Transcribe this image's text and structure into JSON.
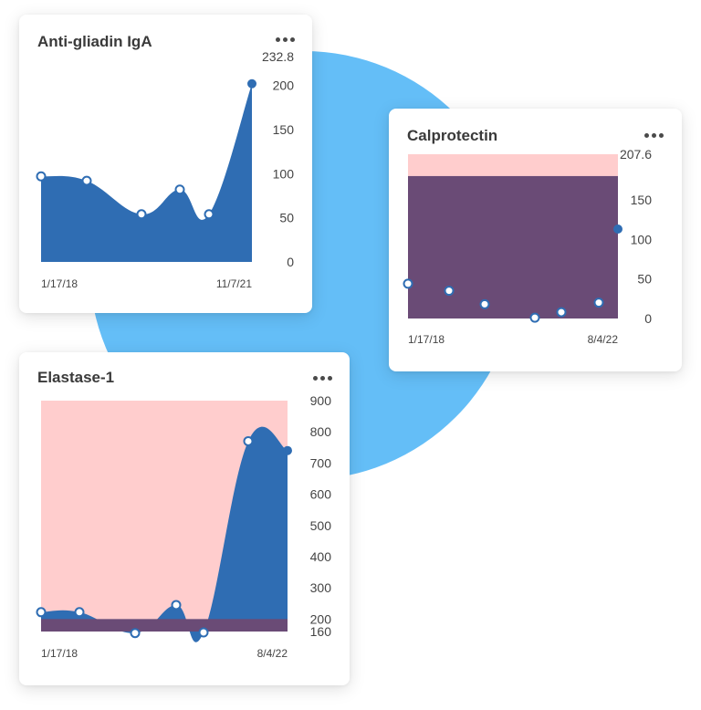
{
  "background": {
    "circle_color": "#64bef7"
  },
  "colors": {
    "series_fill": "#2f6db3",
    "point_fill": "#ffffff",
    "range_fill": "#ffcdcd",
    "overlap_fill": "#6a4b76",
    "text": "#3a3a3a",
    "tick": "#444444"
  },
  "menu_icon": "more-horizontal-icon",
  "cards": [
    {
      "key": "antigliadin",
      "title": "Anti-gliadin IgA",
      "chart_data": {
        "type": "area",
        "title": "Anti-gliadin IgA",
        "x_start_label": "1/17/18",
        "x_end_label": "11/7/21",
        "ylim": [
          0,
          232.8
        ],
        "y_ticks": [
          "232.8",
          "200",
          "150",
          "100",
          "50",
          "0"
        ],
        "y_tick_values": [
          232.8,
          200,
          150,
          100,
          50,
          0
        ],
        "values": [
          97,
          92,
          54,
          82,
          54,
          202
        ],
        "reference_range": null,
        "grid": false,
        "legend": "none"
      }
    },
    {
      "key": "calprotectin",
      "title": "Calprotectin",
      "chart_data": {
        "type": "area",
        "title": "Calprotectin",
        "x_start_label": "1/17/18",
        "x_end_label": "8/4/22",
        "ylim": [
          0,
          207.6
        ],
        "y_ticks": [
          "207.6",
          "150",
          "100",
          "50",
          "0"
        ],
        "y_tick_values": [
          207.6,
          150,
          100,
          50,
          0
        ],
        "values": [
          44,
          35,
          18,
          1,
          8,
          20,
          113
        ],
        "reference_range": [
          180,
          207.6
        ],
        "grid": false,
        "legend": "none"
      }
    },
    {
      "key": "elastase",
      "title": "Elastase-1",
      "chart_data": {
        "type": "area",
        "title": "Elastase-1",
        "x_start_label": "1/17/18",
        "x_end_label": "8/4/22",
        "ylim": [
          160,
          900
        ],
        "y_ticks": [
          "900",
          "800",
          "700",
          "600",
          "500",
          "400",
          "300",
          "200",
          "160"
        ],
        "y_tick_values": [
          900,
          800,
          700,
          600,
          500,
          400,
          300,
          200,
          160
        ],
        "values": [
          222,
          222,
          155,
          245,
          157,
          770,
          740
        ],
        "reference_range": [
          200,
          900
        ],
        "grid": false,
        "legend": "none"
      }
    }
  ]
}
